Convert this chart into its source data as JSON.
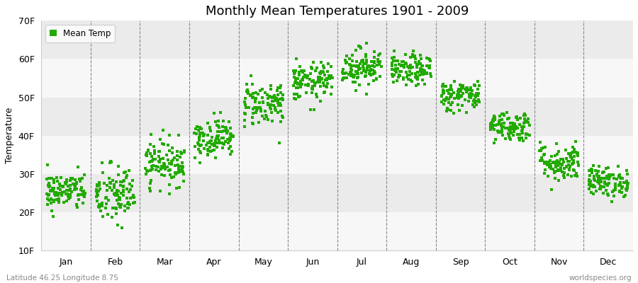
{
  "title": "Monthly Mean Temperatures 1901 - 2009",
  "ylabel": "Temperature",
  "xlabel_months": [
    "Jan",
    "Feb",
    "Mar",
    "Apr",
    "May",
    "Jun",
    "Jul",
    "Aug",
    "Sep",
    "Oct",
    "Nov",
    "Dec"
  ],
  "ylim": [
    10,
    70
  ],
  "yticks": [
    10,
    20,
    30,
    40,
    50,
    60,
    70
  ],
  "ytick_labels": [
    "10F",
    "20F",
    "30F",
    "40F",
    "50F",
    "60F",
    "70F"
  ],
  "marker_color": "#22AA00",
  "marker_size": 3,
  "bg_color": "#FFFFFF",
  "band_color_dark": "#EBEBEB",
  "band_color_light": "#F7F7F7",
  "legend_label": "Mean Temp",
  "bottom_left_text": "Latitude 46.25 Longitude 8.75",
  "bottom_right_text": "worldspecies.org",
  "years": 109,
  "month_means_f": [
    25.5,
    24.5,
    33.0,
    39.5,
    48.5,
    54.0,
    58.0,
    57.0,
    50.5,
    42.5,
    33.0,
    28.0
  ],
  "month_stds_f": [
    2.5,
    4.0,
    3.0,
    2.5,
    3.0,
    2.5,
    2.5,
    2.0,
    2.0,
    2.0,
    2.5,
    2.0
  ],
  "seed": 42
}
